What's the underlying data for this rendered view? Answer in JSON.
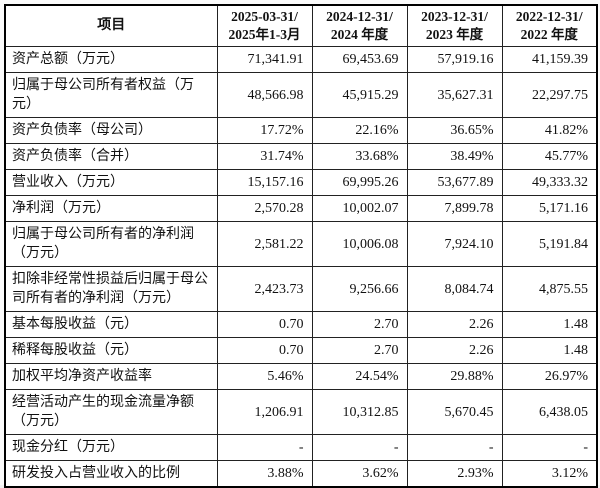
{
  "page": {
    "background_color": "#f2f2f2",
    "table_background_color": "#ffffff",
    "border_color": "#000000",
    "text_color": "#111111"
  },
  "table": {
    "corner_header": "项目",
    "columns": [
      {
        "line1": "2025-03-31/",
        "line2": "2025年1-3月"
      },
      {
        "line1": "2024-12-31/",
        "line2": "2024 年度"
      },
      {
        "line1": "2023-12-31/",
        "line2": "2023 年度"
      },
      {
        "line1": "2022-12-31/",
        "line2": "2022 年度"
      }
    ],
    "rows": [
      {
        "label": "资产总额（万元）",
        "values": [
          "71,341.91",
          "69,453.69",
          "57,919.16",
          "41,159.39"
        ]
      },
      {
        "label": "归属于母公司所有者权益（万元）",
        "values": [
          "48,566.98",
          "45,915.29",
          "35,627.31",
          "22,297.75"
        ]
      },
      {
        "label": "资产负债率（母公司）",
        "values": [
          "17.72%",
          "22.16%",
          "36.65%",
          "41.82%"
        ]
      },
      {
        "label": "资产负债率（合并）",
        "values": [
          "31.74%",
          "33.68%",
          "38.49%",
          "45.77%"
        ]
      },
      {
        "label": "营业收入（万元）",
        "values": [
          "15,157.16",
          "69,995.26",
          "53,677.89",
          "49,333.32"
        ]
      },
      {
        "label": "净利润（万元）",
        "values": [
          "2,570.28",
          "10,002.07",
          "7,899.78",
          "5,171.16"
        ]
      },
      {
        "label": "归属于母公司所有者的净利润（万元）",
        "values": [
          "2,581.22",
          "10,006.08",
          "7,924.10",
          "5,191.84"
        ]
      },
      {
        "label": "扣除非经常性损益后归属于母公司所有者的净利润（万元）",
        "values": [
          "2,423.73",
          "9,256.66",
          "8,084.74",
          "4,875.55"
        ]
      },
      {
        "label": "基本每股收益（元）",
        "values": [
          "0.70",
          "2.70",
          "2.26",
          "1.48"
        ]
      },
      {
        "label": "稀释每股收益（元）",
        "values": [
          "0.70",
          "2.70",
          "2.26",
          "1.48"
        ]
      },
      {
        "label": "加权平均净资产收益率",
        "values": [
          "5.46%",
          "24.54%",
          "29.88%",
          "26.97%"
        ]
      },
      {
        "label": "经营活动产生的现金流量净额（万元）",
        "values": [
          "1,206.91",
          "10,312.85",
          "5,670.45",
          "6,438.05"
        ]
      },
      {
        "label": "现金分红（万元）",
        "values": [
          "-",
          "-",
          "-",
          "-"
        ]
      },
      {
        "label": "研发投入占营业收入的比例",
        "values": [
          "3.88%",
          "3.62%",
          "2.93%",
          "3.12%"
        ]
      }
    ]
  }
}
